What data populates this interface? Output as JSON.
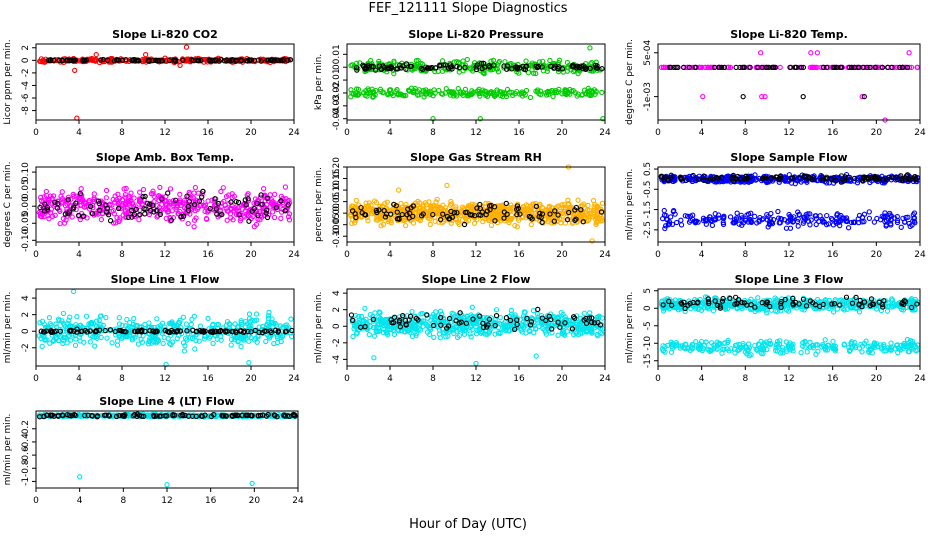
{
  "figure": {
    "title": "FEF_121111  Slope Diagnostics",
    "xlabel": "Hour of Day (UTC)"
  },
  "chart_data": [
    {
      "type": "scatter",
      "title": "Slope Li-820 CO2",
      "ylabel": "Licor ppm per min.",
      "xlim": [
        0,
        24
      ],
      "ylim": [
        -9.5,
        2.6
      ],
      "xticks": [
        0,
        4,
        8,
        12,
        16,
        20,
        24
      ],
      "yticks": [
        -8,
        -6,
        -4,
        -2,
        0,
        2
      ],
      "series": [
        {
          "name": "slope-points",
          "color": "#ff0000",
          "center": 0.0,
          "spread": 0.25,
          "count": 280,
          "outliers": [
            [
              3.6,
              -1.6
            ],
            [
              3.8,
              -9.2
            ],
            [
              14.0,
              2.1
            ],
            [
              5.6,
              0.9
            ],
            [
              10.2,
              0.9
            ],
            [
              13.4,
              -0.8
            ]
          ]
        },
        {
          "name": "hourly-points",
          "color": "#000000",
          "center": 0.0,
          "spread": 0.1,
          "count": 110,
          "outliers": []
        }
      ]
    },
    {
      "type": "scatter",
      "title": "Slope Li-820 Pressure",
      "ylabel": "kPa per min.",
      "xlim": [
        0,
        24
      ],
      "ylim": [
        -0.041,
        0.018
      ],
      "xticks": [
        0,
        4,
        8,
        12,
        16,
        20,
        24
      ],
      "yticks": [
        -0.04,
        -0.03,
        -0.02,
        -0.01,
        0.0,
        0.01
      ],
      "series": [
        {
          "name": "slope-points-upper",
          "color": "#00cc00",
          "center": 0.0,
          "spread": 0.004,
          "count": 260,
          "outliers": [
            [
              8.0,
              -0.04
            ],
            [
              12.4,
              -0.04
            ],
            [
              23.8,
              -0.04
            ],
            [
              22.6,
              0.015
            ]
          ]
        },
        {
          "name": "slope-points-lower",
          "color": "#00cc00",
          "center": -0.02,
          "spread": 0.003,
          "count": 220,
          "outliers": []
        },
        {
          "name": "hourly-points",
          "color": "#000000",
          "center": 0.0,
          "spread": 0.002,
          "count": 110,
          "outliers": []
        }
      ]
    },
    {
      "type": "scatter",
      "title": "Slope Li-820 Temp.",
      "ylabel": "degrees C per min.",
      "xlim": [
        0,
        24
      ],
      "ylim": [
        -0.0018,
        0.0008
      ],
      "xticks": [
        0,
        4,
        8,
        12,
        16,
        20,
        24
      ],
      "yticks": [
        0.0005,
        -0.001
      ],
      "ytick_labels": [
        "5e-04",
        "-1e-03"
      ],
      "series": [
        {
          "name": "slope-points",
          "color": "#ff00ff",
          "center": 0.0,
          "spread": 0.0,
          "count": 120,
          "outliers": [
            [
              4.1,
              -0.001
            ],
            [
              9.5,
              -0.001
            ],
            [
              9.8,
              -0.001
            ],
            [
              14.0,
              0.0005
            ],
            [
              14.6,
              0.0005
            ],
            [
              18.7,
              -0.001
            ],
            [
              20.8,
              -0.0018
            ],
            [
              23.0,
              0.0005
            ],
            [
              9.4,
              0.0005
            ]
          ]
        },
        {
          "name": "hourly-points",
          "color": "#000000",
          "center": 0.0,
          "spread": 0.0,
          "count": 60,
          "outliers": [
            [
              7.8,
              -0.001
            ],
            [
              13.3,
              -0.001
            ],
            [
              18.9,
              -0.001
            ]
          ]
        }
      ]
    },
    {
      "type": "scatter",
      "title": "Slope Amb. Box Temp.",
      "ylabel": "degrees C per min.",
      "xlim": [
        0,
        24
      ],
      "ylim": [
        -0.105,
        0.115
      ],
      "xticks": [
        0,
        4,
        8,
        12,
        16,
        20,
        24
      ],
      "yticks": [
        -0.1,
        -0.05,
        0.0,
        0.05,
        0.1
      ],
      "ytick_labels": [
        "-0.10",
        "-0.05",
        "0.00",
        "0.05",
        "0.10"
      ],
      "series": [
        {
          "name": "slope-points",
          "color": "#ff00ff",
          "center": 0.0,
          "spread": 0.04,
          "count": 500,
          "outliers": []
        },
        {
          "name": "hourly-points",
          "color": "#000000",
          "center": 0.0,
          "spread": 0.035,
          "count": 90,
          "outliers": []
        }
      ]
    },
    {
      "type": "scatter",
      "title": "Slope Gas Stream RH",
      "ylabel": "percent per min.",
      "xlim": [
        0,
        24
      ],
      "ylim": [
        -0.125,
        0.2
      ],
      "xticks": [
        0,
        4,
        8,
        12,
        16,
        20,
        24
      ],
      "yticks": [
        -0.1,
        -0.05,
        0.0,
        0.05,
        0.1,
        0.15,
        0.2
      ],
      "ytick_labels": [
        "-0.10",
        "-0.05",
        "0.00",
        "0.05",
        "0.10",
        "0.15",
        "0.20"
      ],
      "series": [
        {
          "name": "slope-points",
          "color": "#ffb000",
          "center": 0.0,
          "spread": 0.04,
          "count": 700,
          "outliers": [
            [
              4.8,
              0.1
            ],
            [
              9.3,
              0.12
            ],
            [
              20.6,
              0.2
            ],
            [
              22.8,
              -0.12
            ]
          ]
        },
        {
          "name": "hourly-points",
          "color": "#000000",
          "center": 0.0,
          "spread": 0.035,
          "count": 90,
          "outliers": []
        }
      ]
    },
    {
      "type": "scatter",
      "title": "Slope Sample Flow",
      "ylabel": "ml/min per min.",
      "xlim": [
        0,
        24
      ],
      "ylim": [
        -3.1,
        0.6
      ],
      "xticks": [
        0,
        4,
        8,
        12,
        16,
        20,
        24
      ],
      "yticks": [
        -2.5,
        -1.5,
        -0.5,
        0.5
      ],
      "series": [
        {
          "name": "slope-points-upper",
          "color": "#0000ff",
          "center": 0.0,
          "spread": 0.15,
          "count": 380,
          "outliers": []
        },
        {
          "name": "slope-points-lower",
          "color": "#0000ff",
          "center": -2.0,
          "spread": 0.3,
          "count": 230,
          "outliers": []
        },
        {
          "name": "hourly-points",
          "color": "#000000",
          "center": 0.05,
          "spread": 0.12,
          "count": 110,
          "outliers": []
        }
      ]
    },
    {
      "type": "scatter",
      "title": "Slope Line 1 Flow",
      "ylabel": "ml/min per min.",
      "xlim": [
        0,
        24
      ],
      "ylim": [
        -4.2,
        5.1
      ],
      "xticks": [
        0,
        4,
        8,
        12,
        16,
        20,
        24
      ],
      "yticks": [
        -2,
        0,
        2,
        4
      ],
      "series": [
        {
          "name": "slope-points",
          "color": "#00e5ee",
          "center": 0.0,
          "spread": 1.5,
          "count": 450,
          "outliers": [
            [
              12.1,
              -4.0
            ],
            [
              19.8,
              -3.8
            ],
            [
              3.5,
              4.8
            ]
          ]
        },
        {
          "name": "hourly-points",
          "color": "#000000",
          "center": 0.0,
          "spread": 0.15,
          "count": 110,
          "outliers": []
        }
      ]
    },
    {
      "type": "scatter",
      "title": "Slope Line 2 Flow",
      "ylabel": "ml/min per min.",
      "xlim": [
        0,
        24
      ],
      "ylim": [
        -4.8,
        4.5
      ],
      "xticks": [
        0,
        4,
        8,
        12,
        16,
        20,
        24
      ],
      "yticks": [
        -4,
        -2,
        0,
        2,
        4
      ],
      "series": [
        {
          "name": "slope-points",
          "color": "#00e5ee",
          "center": 0.3,
          "spread": 1.2,
          "count": 600,
          "outliers": [
            [
              2.5,
              -3.8
            ],
            [
              12.0,
              -4.5
            ],
            [
              17.6,
              -3.6
            ]
          ]
        },
        {
          "name": "hourly-points",
          "color": "#000000",
          "center": 0.5,
          "spread": 1.0,
          "count": 70,
          "outliers": []
        }
      ]
    },
    {
      "type": "scatter",
      "title": "Slope Line 3 Flow",
      "ylabel": "ml/min per min.",
      "xlim": [
        0,
        24
      ],
      "ylim": [
        -16.5,
        5.5
      ],
      "xticks": [
        0,
        4,
        8,
        12,
        16,
        20,
        24
      ],
      "yticks": [
        -15,
        -10,
        -5,
        0,
        5
      ],
      "series": [
        {
          "name": "slope-points-upper",
          "color": "#00e5ee",
          "center": 1.0,
          "spread": 1.5,
          "count": 450,
          "outliers": []
        },
        {
          "name": "slope-points-lower",
          "color": "#00e5ee",
          "center": -11.0,
          "spread": 1.6,
          "count": 280,
          "outliers": []
        },
        {
          "name": "hourly-points",
          "color": "#000000",
          "center": 1.5,
          "spread": 1.2,
          "count": 80,
          "outliers": []
        }
      ]
    },
    {
      "type": "scatter",
      "title": "Slope Line 4 (LT) Flow",
      "ylabel": "ml/min per min.",
      "xlim": [
        0,
        24
      ],
      "ylim": [
        -1.1,
        0.07
      ],
      "xticks": [
        0,
        4,
        8,
        12,
        16,
        20,
        24
      ],
      "yticks": [
        -1.0,
        -0.8,
        -0.6,
        -0.4,
        -0.2
      ],
      "series": [
        {
          "name": "slope-points",
          "color": "#00e5ee",
          "center": 0.0,
          "spread": 0.015,
          "count": 380,
          "outliers": [
            [
              4.0,
              -0.93
            ],
            [
              12.0,
              -1.05
            ],
            [
              19.8,
              -1.03
            ]
          ]
        },
        {
          "name": "hourly-points",
          "color": "#000000",
          "center": 0.0,
          "spread": 0.015,
          "count": 110,
          "outliers": []
        }
      ]
    }
  ]
}
